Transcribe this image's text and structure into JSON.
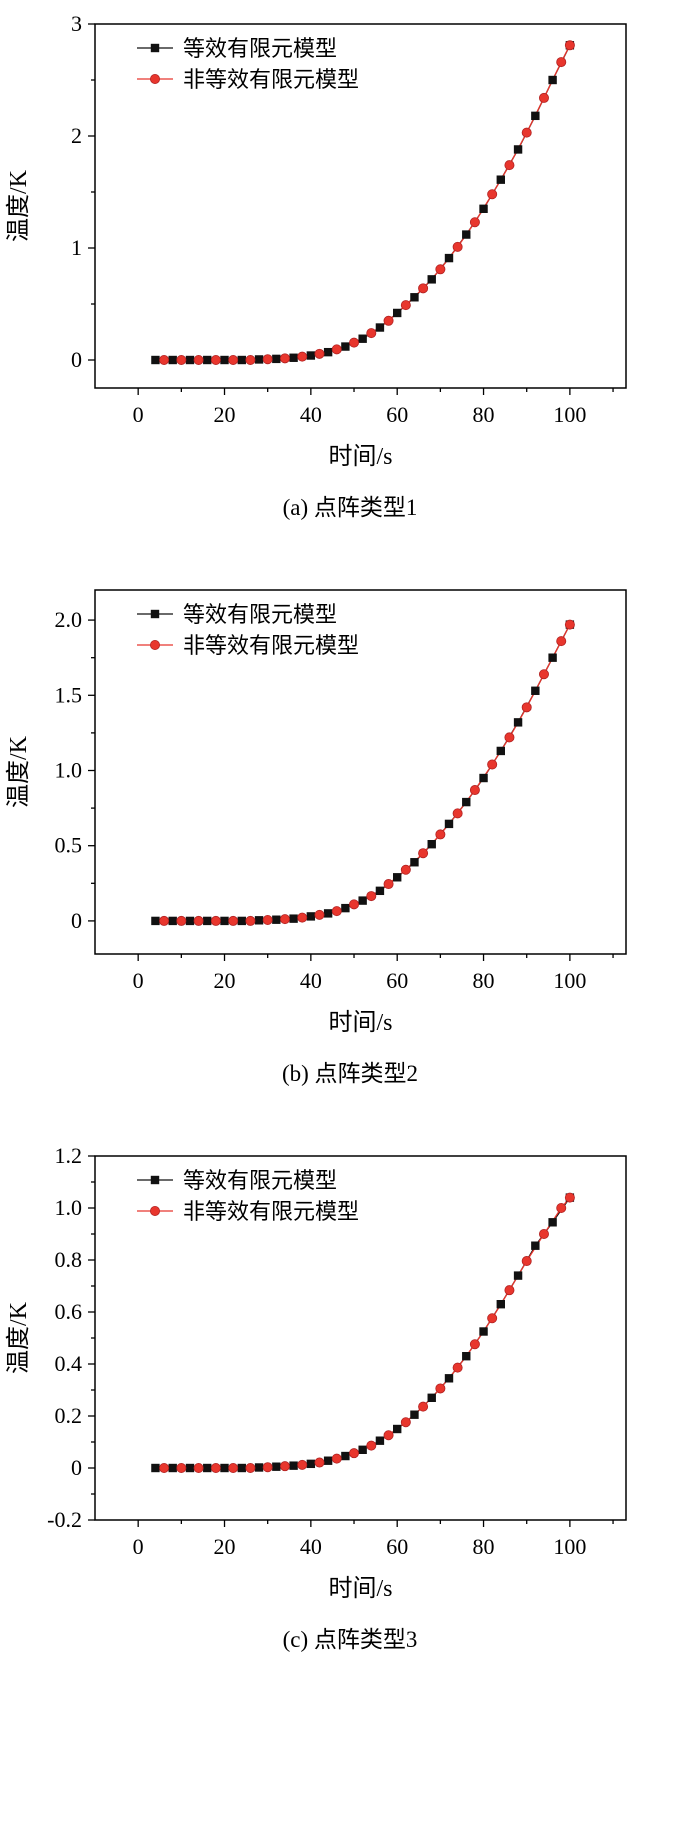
{
  "colors": {
    "series1": "#111111",
    "series2": "#e8362d",
    "series2_edge": "#b22222",
    "axis": "#000000",
    "background": "#ffffff"
  },
  "legend": {
    "position": "top-left",
    "series1_label": "等效有限元模型",
    "series2_label": "非等效有限元模型"
  },
  "chart_data": [
    {
      "type": "line",
      "caption": "(a) 点阵类型1",
      "xlabel": "时间/s",
      "ylabel": "温度/K",
      "xlim": [
        -10,
        113
      ],
      "ylim": [
        -0.25,
        3.0
      ],
      "xticks": [
        0,
        20,
        40,
        60,
        80,
        100
      ],
      "xtick_labels": [
        "0",
        "20",
        "40",
        "60",
        "80",
        "100"
      ],
      "yticks": [
        0,
        1,
        2,
        3
      ],
      "ytick_labels": [
        "0",
        "1",
        "2",
        "3"
      ],
      "x_minor_step": 10,
      "y_minor_step": 0.5,
      "grid": false,
      "legend_position": "top-left",
      "series": [
        {
          "name": "等效有限元模型",
          "marker": "square",
          "color": "#111111",
          "x": [
            4,
            8,
            12,
            16,
            20,
            24,
            28,
            32,
            36,
            40,
            44,
            48,
            52,
            56,
            60,
            64,
            68,
            72,
            76,
            80,
            84,
            88,
            92,
            96,
            100
          ],
          "y": [
            0,
            0,
            0,
            0,
            0,
            0,
            0.005,
            0.01,
            0.02,
            0.04,
            0.07,
            0.12,
            0.19,
            0.29,
            0.42,
            0.56,
            0.72,
            0.91,
            1.12,
            1.35,
            1.61,
            1.88,
            2.18,
            2.5,
            2.81
          ]
        },
        {
          "name": "非等效有限元模型",
          "marker": "circle",
          "color": "#e8362d",
          "x": [
            6,
            10,
            14,
            18,
            22,
            26,
            30,
            34,
            38,
            42,
            46,
            50,
            54,
            58,
            62,
            66,
            70,
            74,
            78,
            82,
            86,
            90,
            94,
            98,
            100
          ],
          "y": [
            0,
            0,
            0,
            0,
            0,
            0,
            0.007,
            0.015,
            0.03,
            0.055,
            0.095,
            0.155,
            0.24,
            0.35,
            0.49,
            0.64,
            0.81,
            1.01,
            1.23,
            1.48,
            1.74,
            2.03,
            2.34,
            2.66,
            2.81
          ]
        }
      ]
    },
    {
      "type": "line",
      "caption": "(b) 点阵类型2",
      "xlabel": "时间/s",
      "ylabel": "温度/K",
      "xlim": [
        -10,
        113
      ],
      "ylim": [
        -0.22,
        2.2
      ],
      "xticks": [
        0,
        20,
        40,
        60,
        80,
        100
      ],
      "xtick_labels": [
        "0",
        "20",
        "40",
        "60",
        "80",
        "100"
      ],
      "yticks": [
        0,
        0.5,
        1.0,
        1.5,
        2.0
      ],
      "ytick_labels": [
        "0",
        "0.5",
        "1.0",
        "1.5",
        "2.0"
      ],
      "x_minor_step": 10,
      "y_minor_step": 0.25,
      "grid": false,
      "legend_position": "top-left",
      "series": [
        {
          "name": "等效有限元模型",
          "marker": "square",
          "color": "#111111",
          "x": [
            4,
            8,
            12,
            16,
            20,
            24,
            28,
            32,
            36,
            40,
            44,
            48,
            52,
            56,
            60,
            64,
            68,
            72,
            76,
            80,
            84,
            88,
            92,
            96,
            100
          ],
          "y": [
            0,
            0,
            0,
            0,
            0,
            0,
            0.004,
            0.008,
            0.015,
            0.03,
            0.05,
            0.085,
            0.135,
            0.2,
            0.29,
            0.39,
            0.51,
            0.645,
            0.79,
            0.95,
            1.13,
            1.32,
            1.53,
            1.75,
            1.97
          ]
        },
        {
          "name": "非等效有限元模型",
          "marker": "circle",
          "color": "#e8362d",
          "x": [
            6,
            10,
            14,
            18,
            22,
            26,
            30,
            34,
            38,
            42,
            46,
            50,
            54,
            58,
            62,
            66,
            70,
            74,
            78,
            82,
            86,
            90,
            94,
            98,
            100
          ],
          "y": [
            0,
            0,
            0,
            0,
            0,
            0,
            0.006,
            0.012,
            0.022,
            0.04,
            0.065,
            0.11,
            0.165,
            0.245,
            0.34,
            0.45,
            0.575,
            0.715,
            0.87,
            1.04,
            1.22,
            1.42,
            1.64,
            1.86,
            1.97
          ]
        }
      ]
    },
    {
      "type": "line",
      "caption": "(c) 点阵类型3",
      "xlabel": "时间/s",
      "ylabel": "温度/K",
      "xlim": [
        -10,
        113
      ],
      "ylim": [
        -0.2,
        1.2
      ],
      "xticks": [
        0,
        20,
        40,
        60,
        80,
        100
      ],
      "xtick_labels": [
        "0",
        "20",
        "40",
        "60",
        "80",
        "100"
      ],
      "yticks": [
        -0.2,
        0,
        0.2,
        0.4,
        0.6,
        0.8,
        1.0,
        1.2
      ],
      "ytick_labels": [
        "-0.2",
        "0",
        "0.2",
        "0.4",
        "0.6",
        "0.8",
        "1.0",
        "1.2"
      ],
      "x_minor_step": 10,
      "y_minor_step": 0.1,
      "grid": false,
      "legend_position": "top-left",
      "series": [
        {
          "name": "等效有限元模型",
          "marker": "square",
          "color": "#111111",
          "x": [
            4,
            8,
            12,
            16,
            20,
            24,
            28,
            32,
            36,
            40,
            44,
            48,
            52,
            56,
            60,
            64,
            68,
            72,
            76,
            80,
            84,
            88,
            92,
            96,
            100
          ],
          "y": [
            0,
            0,
            0,
            0,
            0,
            0,
            0.002,
            0.005,
            0.009,
            0.016,
            0.028,
            0.046,
            0.07,
            0.105,
            0.15,
            0.205,
            0.27,
            0.345,
            0.43,
            0.525,
            0.63,
            0.74,
            0.855,
            0.945,
            1.04
          ]
        },
        {
          "name": "非等效有限元模型",
          "marker": "circle",
          "color": "#e8362d",
          "x": [
            6,
            10,
            14,
            18,
            22,
            26,
            30,
            34,
            38,
            42,
            46,
            50,
            54,
            58,
            62,
            66,
            70,
            74,
            78,
            82,
            86,
            90,
            94,
            98,
            100
          ],
          "y": [
            0,
            0,
            0,
            0,
            0,
            0,
            0.003,
            0.007,
            0.012,
            0.021,
            0.036,
            0.057,
            0.086,
            0.126,
            0.176,
            0.236,
            0.306,
            0.386,
            0.476,
            0.576,
            0.684,
            0.796,
            0.9,
            1.0,
            1.04
          ]
        }
      ]
    }
  ]
}
